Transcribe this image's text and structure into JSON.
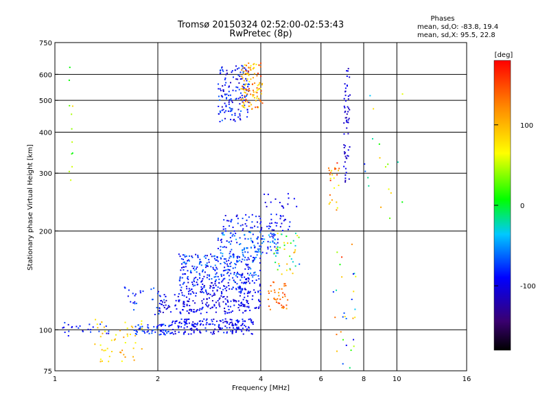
{
  "chart_data": {
    "type": "scatter",
    "title": "Tromsø 20150324 02:52:00-02:53:43",
    "subtitle": "RwPretec (8p)",
    "xlabel": "Frequency [MHz]",
    "ylabel": "Stationary phase Virtual Height [km]",
    "x_scale": "log",
    "y_scale": "log",
    "xlim": [
      1,
      16
    ],
    "ylim": [
      75,
      750
    ],
    "x_ticks": [
      1,
      2,
      4,
      6,
      8,
      10,
      16
    ],
    "y_ticks": [
      75,
      100,
      200,
      300,
      400,
      500,
      600,
      750
    ],
    "grid": "major lines",
    "phases": {
      "heading": "Phases",
      "line1": "mean, sd,O: -83.8, 19.4",
      "line2": "mean, sd,X:  95.5, 22.8"
    },
    "colorbar": {
      "unit": "[deg]",
      "range": [
        -180,
        180
      ],
      "ticks": [
        100,
        0,
        -100
      ],
      "colormap": "black-purple-blue-cyan-green-yellow-orange-red"
    },
    "clusters": [
      {
        "x": [
          1.05,
          1.45
        ],
        "y": [
          94,
          106
        ],
        "n": 25,
        "phase": [
          -110,
          -70
        ]
      },
      {
        "x": [
          1.3,
          1.8
        ],
        "y": [
          80,
          108
        ],
        "n": 50,
        "phase": [
          60,
          120
        ]
      },
      {
        "x": [
          1.7,
          2.2
        ],
        "y": [
          96,
          104
        ],
        "n": 60,
        "phase": [
          -100,
          -60
        ]
      },
      {
        "x": [
          2.2,
          3.8
        ],
        "y": [
          97,
          108
        ],
        "n": 180,
        "phase": [
          -115,
          -75
        ]
      },
      {
        "x": [
          1.6,
          2.2
        ],
        "y": [
          110,
          135
        ],
        "n": 30,
        "phase": [
          -100,
          -60
        ]
      },
      {
        "x": [
          2.0,
          4.0
        ],
        "y": [
          112,
          128
        ],
        "n": 180,
        "phase": [
          -120,
          -80
        ]
      },
      {
        "x": [
          2.3,
          4.0
        ],
        "y": [
          128,
          140
        ],
        "n": 130,
        "phase": [
          -115,
          -70
        ]
      },
      {
        "x": [
          2.3,
          4.0
        ],
        "y": [
          140,
          170
        ],
        "n": 250,
        "phase": [
          -110,
          -50
        ]
      },
      {
        "x": [
          3.0,
          4.5
        ],
        "y": [
          170,
          200
        ],
        "n": 120,
        "phase": [
          -100,
          -40
        ]
      },
      {
        "x": [
          3.1,
          4.9
        ],
        "y": [
          200,
          225
        ],
        "n": 70,
        "phase": [
          -110,
          -70
        ]
      },
      {
        "x": [
          4.0,
          5.1
        ],
        "y": [
          235,
          260
        ],
        "n": 15,
        "phase": [
          -110,
          -90
        ]
      },
      {
        "x": [
          4.2,
          4.8
        ],
        "y": [
          115,
          140
        ],
        "n": 40,
        "phase": [
          100,
          160
        ]
      },
      {
        "x": [
          4.2,
          5.2
        ],
        "y": [
          145,
          200
        ],
        "n": 40,
        "phase": [
          -70,
          120
        ]
      },
      {
        "x": [
          3.0,
          3.7
        ],
        "y": [
          430,
          640
        ],
        "n": 150,
        "phase": [
          -120,
          -60
        ]
      },
      {
        "x": [
          3.5,
          4.05
        ],
        "y": [
          470,
          650
        ],
        "n": 110,
        "phase": [
          60,
          160
        ]
      },
      {
        "x": [
          1.1,
          1.13
        ],
        "y": [
          270,
          650
        ],
        "n": 12,
        "phase": [
          0,
          100
        ]
      },
      {
        "x": [
          6.3,
          6.8
        ],
        "y": [
          230,
          330
        ],
        "n": 25,
        "phase": [
          50,
          170
        ]
      },
      {
        "x": [
          7.0,
          7.3
        ],
        "y": [
          280,
          640
        ],
        "n": 60,
        "phase": [
          -120,
          -90
        ]
      },
      {
        "x": [
          6.5,
          7.6
        ],
        "y": [
          76,
          200
        ],
        "n": 30,
        "phase": [
          -110,
          160
        ]
      },
      {
        "x": [
          8.0,
          10.5
        ],
        "y": [
          200,
          600
        ],
        "n": 18,
        "phase": [
          -110,
          120
        ]
      }
    ]
  }
}
